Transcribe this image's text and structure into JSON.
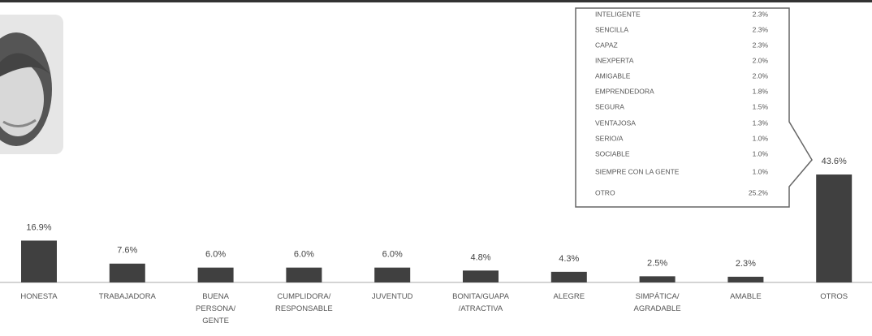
{
  "chart_data": {
    "type": "bar",
    "categories": [
      "HONESTA",
      "TRABAJADORA",
      "BUENA PERSONA/ GENTE",
      "CUMPLIDORA/ RESPONSABLE",
      "JUVENTUD",
      "BONITA/GUAPA /ATRACTIVA",
      "ALEGRE",
      "SIMPÁTICA/ AGRADABLE",
      "AMABLE",
      "OTROS"
    ],
    "values": [
      16.9,
      7.6,
      6.0,
      6.0,
      6.0,
      4.8,
      4.3,
      2.5,
      2.3,
      43.6
    ],
    "value_labels": [
      "16.9%",
      "7.6%",
      "6.0%",
      "6.0%",
      "6.0%",
      "4.8%",
      "4.3%",
      "2.5%",
      "2.3%",
      "43.6%"
    ],
    "color": "#404040",
    "callout": {
      "rows": [
        [
          "INTELIGENTE",
          "2.3%"
        ],
        [
          "SENCILLA",
          "2.3%"
        ],
        [
          "CAPAZ",
          "2.3%"
        ],
        [
          "INEXPERTA",
          "2.0%"
        ],
        [
          "AMIGABLE",
          "2.0%"
        ],
        [
          "EMPRENDEDORA",
          "1.8%"
        ],
        [
          "SEGURA",
          "1.5%"
        ],
        [
          "VENTAJOSA",
          "1.3%"
        ],
        [
          "SERIO/A",
          "1.0%"
        ],
        [
          "SOCIABLE",
          "1.0%"
        ],
        [
          "SIEMPRE CON LA GENTE",
          "1.0%"
        ],
        [
          "OTRO",
          "25.2%"
        ]
      ]
    }
  }
}
